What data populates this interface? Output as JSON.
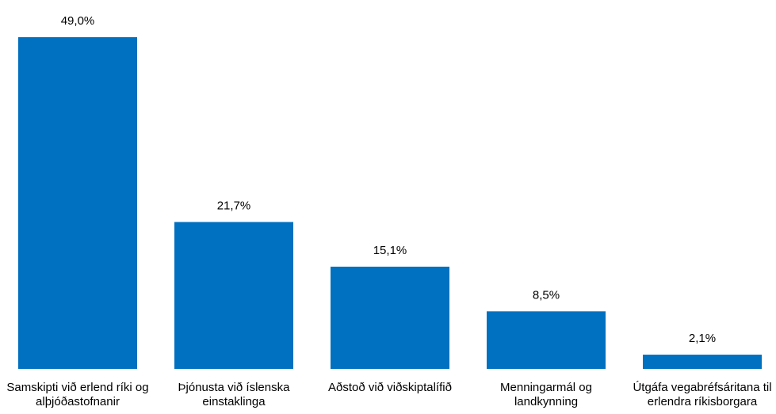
{
  "chart_data": {
    "type": "bar",
    "categories": [
      "Samskipti við erlend ríki og alþjóðastofnanir",
      "Þjónusta við íslenska einstaklinga",
      "Aðstoð við viðskiptalífið",
      "Menningarmál og landkynning",
      "Útgáfa vegabréfsáritana til erlendra ríkisborgara"
    ],
    "values": [
      49.0,
      21.7,
      15.1,
      8.5,
      2.1
    ],
    "value_labels": [
      "49,0%",
      "21,7%",
      "15,1%",
      "8,5%",
      "2,1%"
    ],
    "color": "#0070c0"
  }
}
